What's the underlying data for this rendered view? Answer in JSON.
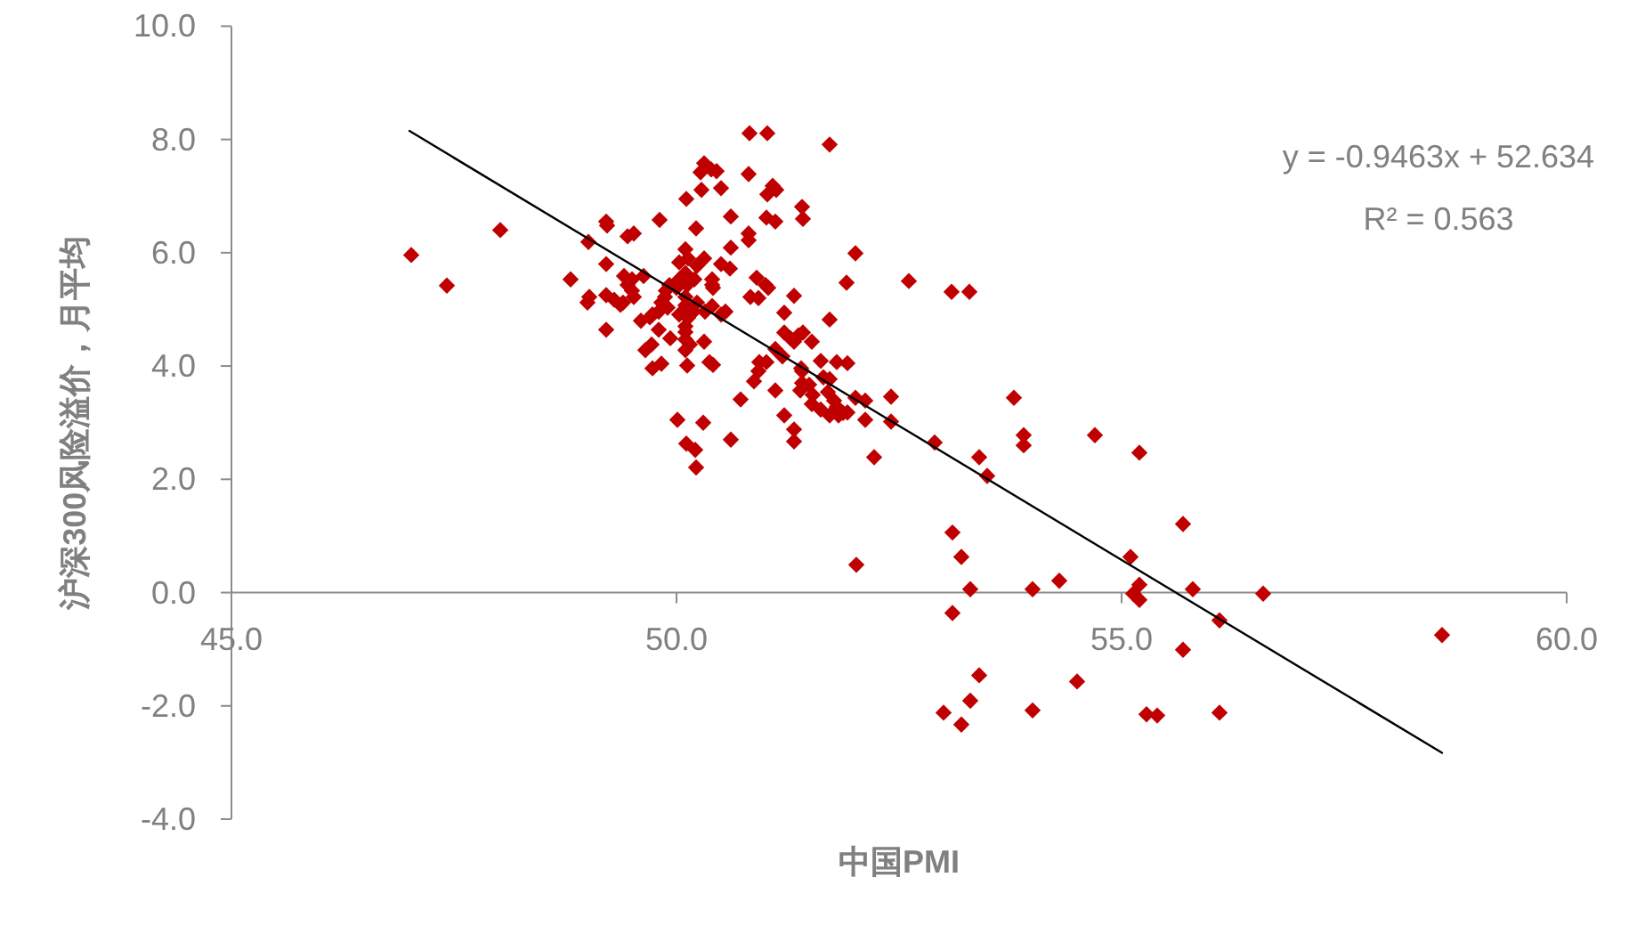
{
  "chart_data": {
    "type": "scatter",
    "xlabel": "中国PMI",
    "ylabel": "沪深300风险溢价，月平均",
    "annotations": [
      "y = -0.9463x + 52.634",
      "R² = 0.563"
    ],
    "xlim": [
      45,
      60
    ],
    "ylim": [
      -4,
      10
    ],
    "xticks": [
      {
        "value": 45,
        "label": "45.0"
      },
      {
        "value": 50,
        "label": "50.0"
      },
      {
        "value": 55,
        "label": "55.0"
      },
      {
        "value": 60,
        "label": "60.0"
      }
    ],
    "yticks": [
      {
        "value": -4,
        "label": "-4.0"
      },
      {
        "value": -2,
        "label": "-2.0"
      },
      {
        "value": 0,
        "label": "0.0"
      },
      {
        "value": 2,
        "label": "2.0"
      },
      {
        "value": 4,
        "label": "4.0"
      },
      {
        "value": 6,
        "label": "6.0"
      },
      {
        "value": 8,
        "label": "8.0"
      },
      {
        "value": 10,
        "label": "10.0"
      }
    ],
    "series": [
      {
        "color": "#c00000",
        "marker": "diamond",
        "x": [
          47.02,
          47.42,
          48.02,
          48.81,
          49.01,
          49.02,
          49.0,
          49.21,
          49.21,
          49.21,
          49.3,
          49.37,
          49.41,
          49.45,
          49.45,
          49.52,
          49.52,
          49.63,
          49.21,
          49.65,
          49.73,
          49.83,
          49.81,
          49.6,
          49.73,
          49.8,
          49.87,
          49.9,
          49.93,
          50.0,
          50.03,
          50.03,
          50.1,
          50.13,
          50.1,
          50.1,
          50.1,
          50.1,
          50.1,
          50.12,
          50.11,
          50.19,
          50.2,
          50.22,
          50.23,
          50.23,
          50.31,
          50.39,
          50.27,
          50.45,
          50.28,
          50.5,
          50.31,
          50.4,
          50.41,
          50.5,
          50.6,
          50.4,
          50.5,
          50.31,
          50.37,
          50.41,
          50.01,
          50.3,
          50.11,
          50.21,
          50.22,
          50.61,
          50.81,
          50.81,
          50.61,
          50.81,
          50.82,
          51.02,
          51.72,
          51.08,
          51.12,
          51.02,
          51.41,
          51.42,
          51.01,
          51.11,
          52.01,
          51.91,
          52.61,
          53.09,
          53.29,
          50.9,
          51.0,
          50.83,
          50.92,
          51.32,
          51.21,
          51.72,
          51.21,
          51.42,
          51.52,
          51.32,
          51.11,
          51.19,
          51.01,
          50.92,
          51.62,
          51.8,
          51.92,
          51.41,
          50.87,
          51.11,
          51.39,
          51.49,
          51.72,
          50.72,
          51.52,
          51.62,
          51.72,
          51.82,
          51.92,
          52.01,
          52.12,
          52.41,
          52.12,
          52.41,
          51.21,
          51.32,
          51.32,
          50.61,
          52.22,
          52.9,
          53.4,
          53.49,
          52.02,
          53.79,
          53.9,
          53.9,
          54.7,
          55.2,
          55.69,
          53.1,
          53.2,
          55.1,
          53.3,
          54.0,
          54.3,
          55.2,
          55.13,
          55.2,
          55.8,
          56.59,
          53.1,
          56.1,
          55.69,
          53.4,
          54.5,
          53.3,
          53.0,
          53.2,
          54.0,
          55.28,
          55.4,
          56.1,
          58.6,
          49.22,
          50.03,
          50.4,
          49.92,
          49.88,
          49.83,
          50.12,
          50.1,
          50.13,
          50.1,
          50.15,
          50.32,
          50.55,
          49.7,
          49.8,
          49.5,
          49.4,
          49.5,
          49.72,
          51.03,
          51.28,
          51.37,
          50.93,
          51.4,
          51.65,
          51.41,
          51.53,
          51.7,
          51.77,
          51.8,
          51.87
        ],
        "values": [
          5.96,
          5.42,
          6.4,
          5.53,
          6.19,
          5.22,
          5.12,
          6.55,
          5.8,
          5.25,
          5.17,
          5.08,
          5.59,
          5.43,
          6.29,
          6.34,
          5.22,
          5.59,
          4.64,
          4.28,
          3.96,
          4.04,
          6.58,
          4.8,
          4.91,
          4.64,
          5.22,
          5.03,
          4.49,
          5.38,
          4.91,
          5.83,
          6.06,
          5.9,
          5.64,
          5.22,
          4.7,
          4.47,
          4.28,
          4.01,
          6.95,
          4.96,
          5.53,
          6.43,
          5.77,
          5.12,
          7.58,
          7.47,
          7.42,
          7.44,
          7.11,
          7.14,
          5.9,
          5.53,
          5.38,
          5.8,
          5.72,
          5.06,
          4.91,
          4.43,
          4.07,
          4.02,
          3.05,
          3.0,
          2.63,
          2.52,
          2.21,
          6.64,
          6.34,
          6.22,
          6.09,
          7.39,
          8.11,
          8.11,
          7.91,
          7.18,
          7.11,
          7.03,
          6.81,
          6.6,
          6.62,
          6.55,
          5.99,
          5.47,
          5.5,
          5.31,
          5.31,
          5.56,
          5.43,
          5.22,
          5.2,
          5.24,
          4.94,
          4.82,
          4.59,
          4.59,
          4.43,
          4.43,
          4.3,
          4.17,
          4.07,
          3.91,
          4.09,
          4.07,
          4.05,
          3.91,
          3.73,
          3.57,
          3.57,
          3.67,
          3.77,
          3.41,
          3.33,
          3.23,
          3.13,
          3.13,
          3.18,
          3.44,
          3.39,
          3.46,
          3.05,
          3.02,
          3.13,
          2.88,
          2.67,
          2.7,
          2.39,
          2.65,
          2.39,
          2.06,
          0.49,
          3.44,
          2.78,
          2.6,
          2.78,
          2.47,
          1.21,
          1.06,
          0.63,
          0.63,
          0.06,
          0.06,
          0.21,
          0.14,
          -0.02,
          -0.13,
          0.06,
          -0.02,
          -0.36,
          -0.49,
          -1.01,
          -1.46,
          -1.57,
          -1.91,
          -2.12,
          -2.33,
          -2.08,
          -2.15,
          -2.17,
          -2.12,
          -0.75,
          6.48,
          5.53,
          5.43,
          5.43,
          5.33,
          5.12,
          5.43,
          5.07,
          4.85,
          4.6,
          4.38,
          4.96,
          4.96,
          4.86,
          4.96,
          5.33,
          5.12,
          5.53,
          4.38,
          5.38,
          4.49,
          4.54,
          4.07,
          3.96,
          3.8,
          3.7,
          3.49,
          3.54,
          3.39,
          3.28,
          3.17
        ]
      },
      {
        "type": "line",
        "color": "#000000",
        "marker": "none",
        "x": [
          47.0,
          58.6
        ],
        "values": [
          8.15,
          -2.83
        ]
      }
    ]
  }
}
